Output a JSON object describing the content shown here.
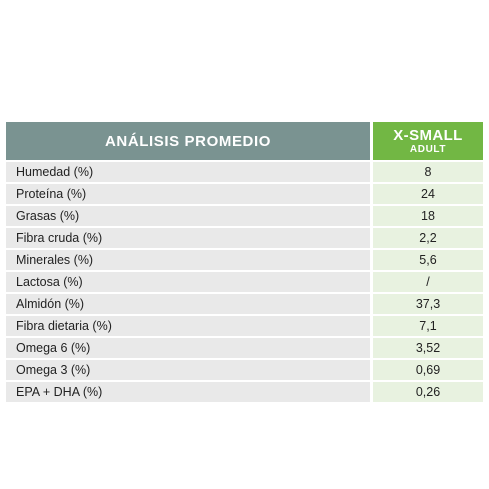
{
  "table": {
    "header_label": "ANÁLISIS PROMEDIO",
    "product_name": "X-SMALL",
    "product_sub": "ADULT",
    "rows": [
      {
        "label": "Humedad (%)",
        "value": "8"
      },
      {
        "label": "Proteína (%)",
        "value": "24"
      },
      {
        "label": "Grasas (%)",
        "value": "18"
      },
      {
        "label": "Fibra cruda (%)",
        "value": "2,2"
      },
      {
        "label": "Minerales (%)",
        "value": "5,6"
      },
      {
        "label": "Lactosa (%)",
        "value": "/"
      },
      {
        "label": "Almidón (%)",
        "value": "37,3"
      },
      {
        "label": "Fibra dietaria (%)",
        "value": "7,1"
      },
      {
        "label": "Omega 6 (%)",
        "value": "3,52"
      },
      {
        "label": "Omega 3 (%)",
        "value": "0,69"
      },
      {
        "label": "EPA + DHA (%)",
        "value": "0,26"
      }
    ]
  },
  "colors": {
    "header_gray": "#7a9391",
    "header_green": "#72b744",
    "row_gray": "#e9e9e9",
    "row_green": "#e8f2e0"
  }
}
